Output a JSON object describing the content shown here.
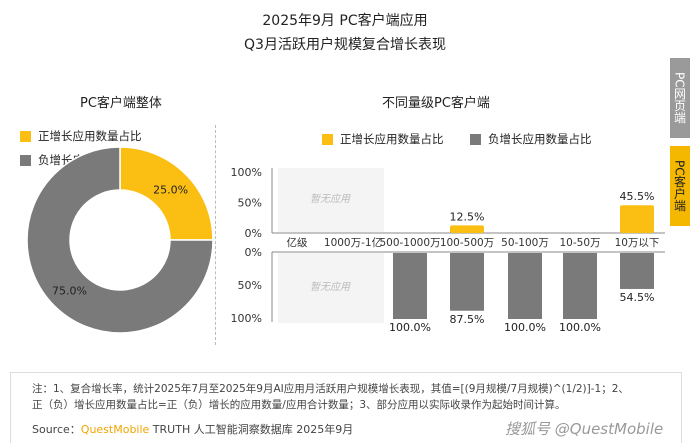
{
  "title_line1": "2025年9月 PC客户端应用",
  "title_line2": "Q3月活跃用户规模复合增长表现",
  "side_tabs": [
    {
      "label": "PC网页端",
      "color": "#9a9a9a"
    },
    {
      "label": "PC客户端",
      "color": "#f5b800"
    }
  ],
  "colors": {
    "positive": "#fbbf14",
    "negative": "#7a7a7a"
  },
  "chart_data": [
    {
      "type": "pie",
      "title": "PC客户端整体",
      "legend": [
        "正增长应用数量占比",
        "负增长应用数量占比"
      ],
      "labels": [
        "正增长应用数量占比",
        "负增长应用数量占比"
      ],
      "values": [
        25.0,
        75.0
      ],
      "data_labels": [
        "25.0%",
        "75.0%"
      ]
    },
    {
      "type": "bar",
      "title": "不同量级PC客户端",
      "legend": [
        "正增长应用数量占比",
        "负增长应用数量占比"
      ],
      "categories": [
        "亿级",
        "1000万-1亿",
        "500-1000万",
        "100-500万",
        "50-100万",
        "10-50万",
        "10万以下"
      ],
      "yticks": [
        "100%",
        "50%",
        "0%"
      ],
      "ylim": [
        0,
        100
      ],
      "no_data_label": "暂无应用",
      "series": [
        {
          "name": "正增长应用数量占比",
          "values": [
            null,
            null,
            0,
            12.5,
            0,
            0,
            45.5
          ],
          "labels": [
            "",
            "",
            "",
            "12.5%",
            "",
            "",
            "45.5%"
          ]
        },
        {
          "name": "负增长应用数量占比",
          "values": [
            null,
            null,
            100,
            87.5,
            100,
            100,
            54.5
          ],
          "labels": [
            "",
            "",
            "100.0%",
            "87.5%",
            "100.0%",
            "100.0%",
            "54.5%"
          ]
        }
      ]
    }
  ],
  "note_line1": "注：1、复合增长率，统计2025年7月至2025年9月AI应用月活跃用户规模增长表现，其值=[(9月规模/7月规模)^(1/2)]-1；2、",
  "note_line2": "正（负）增长应用数量占比=正（负）增长的应用数量/应用合计数量；3、部分应用以实际收录作为起始时间计算。",
  "source_prefix": "Source：",
  "source_brand": "QuestMobile",
  "source_rest": " TRUTH 人工智能洞察数据库 2025年9月",
  "watermark": "搜狐号 @QuestMobile"
}
